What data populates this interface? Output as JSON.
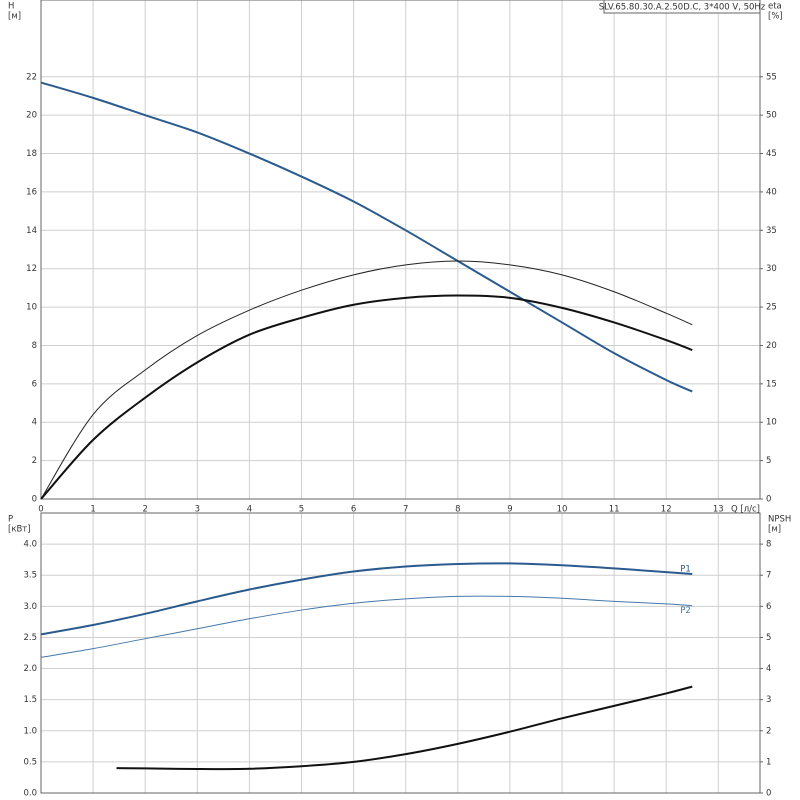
{
  "chart_data": [
    {
      "type": "line",
      "title": "SLV.65.80.30.A.2.50D.C, 3*400 V, 50Hz",
      "y_label": "H",
      "y_unit": "[м]",
      "y2_label": "eta",
      "y2_unit": "[%]",
      "x_label": "Q [л/с]",
      "x": [
        0,
        1,
        2,
        3,
        4,
        5,
        6,
        7,
        8,
        9,
        10,
        11,
        12,
        12.5
      ],
      "xlim": [
        0,
        13.8
      ],
      "xticks": [
        0,
        1,
        2,
        3,
        4,
        5,
        6,
        7,
        8,
        9,
        10,
        11,
        12,
        13
      ],
      "ylim": [
        0,
        26
      ],
      "yticks": [
        0,
        2,
        4,
        6,
        8,
        10,
        12,
        14,
        16,
        18,
        20,
        22
      ],
      "y2lim": [
        0,
        65
      ],
      "y2ticks": [
        0,
        5,
        10,
        15,
        20,
        25,
        30,
        35,
        40,
        45,
        50,
        55
      ],
      "grid": true,
      "series": [
        {
          "color": "#2b5b8e",
          "width": 2,
          "values": [
            21.7,
            20.9,
            20.0,
            19.1,
            18.0,
            16.8,
            15.5,
            14.0,
            12.4,
            10.8,
            9.2,
            7.6,
            6.2,
            5.6
          ]
        },
        {
          "color": "#222222",
          "width": 1,
          "axis": "y2",
          "values": [
            0,
            11,
            16.8,
            21.3,
            24.6,
            27.2,
            29.2,
            30.5,
            31,
            30.5,
            29.2,
            27,
            24.2,
            22.7
          ]
        },
        {
          "color": "#111111",
          "width": 2,
          "axis": "y2",
          "values": [
            0,
            7.7,
            13.2,
            17.8,
            21.4,
            23.6,
            25.3,
            26.2,
            26.5,
            26.2,
            24.9,
            23,
            20.7,
            19.4
          ]
        }
      ]
    },
    {
      "type": "line",
      "y_label": "P",
      "y_unit": "[кВт]",
      "y2_label": "NPSH",
      "y2_unit": "[м]",
      "x": [
        0,
        1,
        2,
        3,
        4,
        5,
        6,
        7,
        8,
        9,
        10,
        11,
        12,
        12.5
      ],
      "xlim": [
        0,
        13.8
      ],
      "xticks": [
        0,
        1,
        2,
        3,
        4,
        5,
        6,
        7,
        8,
        9,
        10,
        11,
        12,
        13
      ],
      "xtick_labels": false,
      "ylim": [
        0,
        4.5
      ],
      "yticks": [
        {
          "value": 0,
          "label": "0.0"
        },
        0.5,
        {
          "value": 1,
          "label": "1.0"
        },
        1.5,
        {
          "value": 2,
          "label": "2.0"
        },
        2.5,
        {
          "value": 3,
          "label": "3.0"
        },
        3.5,
        {
          "value": 4,
          "label": "4.0"
        }
      ],
      "y2lim": [
        0,
        9
      ],
      "y2ticks": [
        0,
        1,
        2,
        3,
        4,
        5,
        6,
        7,
        8
      ],
      "grid": true,
      "series": [
        {
          "name": "P1",
          "color": "#2b5b8e",
          "width": 2,
          "values": [
            2.55,
            2.7,
            2.88,
            3.08,
            3.27,
            3.43,
            3.56,
            3.64,
            3.68,
            3.69,
            3.66,
            3.61,
            3.55,
            3.52
          ]
        },
        {
          "name": "P2",
          "color": "#4677aa",
          "width": 1,
          "values": [
            2.18,
            2.32,
            2.48,
            2.64,
            2.8,
            2.94,
            3.05,
            3.12,
            3.16,
            3.16,
            3.13,
            3.08,
            3.04,
            3.01
          ]
        },
        {
          "color": "#111111",
          "width": 2,
          "axis": "y2",
          "x": [
            1.45,
            2,
            3,
            4,
            5,
            6,
            7,
            8,
            9,
            10,
            11,
            12,
            12.5
          ],
          "values": [
            0.8,
            0.79,
            0.77,
            0.78,
            0.86,
            1.0,
            1.25,
            1.58,
            1.97,
            2.4,
            2.8,
            3.2,
            3.42
          ]
        }
      ]
    }
  ]
}
